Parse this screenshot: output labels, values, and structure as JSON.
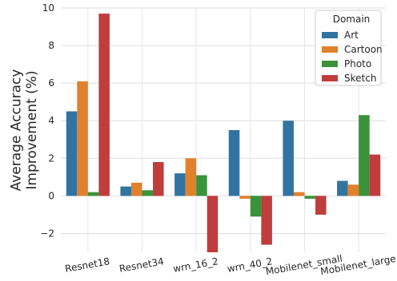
{
  "chart_data": {
    "type": "bar",
    "title": "",
    "xlabel": "",
    "ylabel": "Average Accuracy\nImprovement (%)",
    "categories": [
      "Resnet18",
      "Resnet34",
      "wrn_16_2",
      "wrn_40_2",
      "Mobilenet_small",
      "Mobilenet_large"
    ],
    "series": [
      {
        "name": "Art",
        "color": "#3274a1",
        "values": [
          4.5,
          0.5,
          1.2,
          3.5,
          4.0,
          0.8
        ]
      },
      {
        "name": "Cartoon",
        "color": "#e1812c",
        "values": [
          6.1,
          0.7,
          2.0,
          -0.15,
          0.2,
          0.6
        ]
      },
      {
        "name": "Photo",
        "color": "#3a923a",
        "values": [
          0.2,
          0.3,
          1.1,
          -1.1,
          -0.15,
          4.3
        ]
      },
      {
        "name": "Sketch",
        "color": "#c03d3e",
        "values": [
          9.7,
          1.8,
          -3.1,
          -2.6,
          -1.0,
          2.2
        ]
      }
    ],
    "ylim": [
      -3.0,
      10.0
    ],
    "yticks": [
      -2,
      0,
      2,
      4,
      6,
      8,
      10
    ],
    "grid": true,
    "legend": {
      "title": "Domain",
      "placement": "top-right"
    }
  }
}
